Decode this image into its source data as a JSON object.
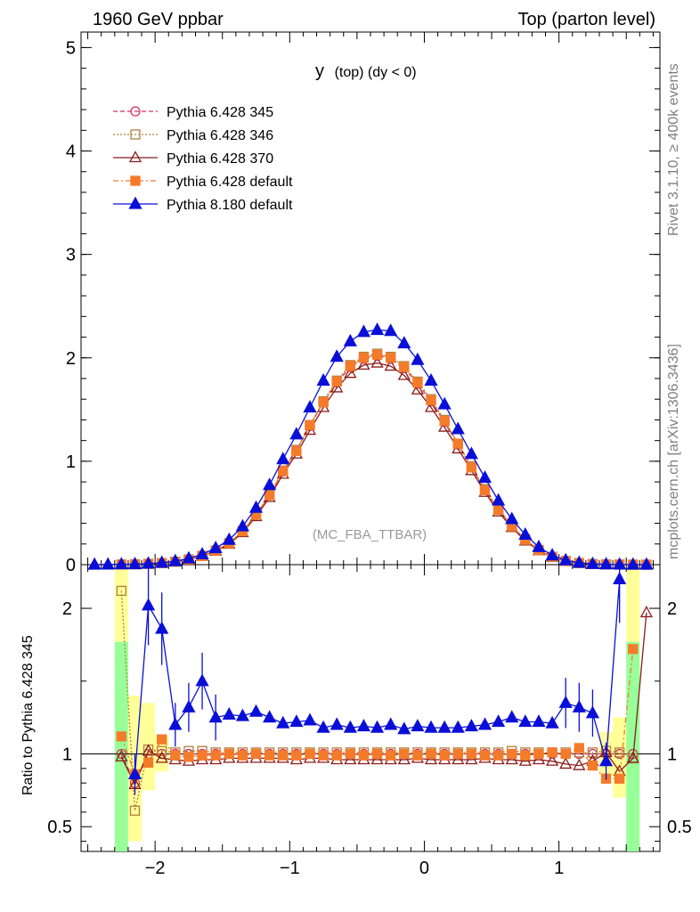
{
  "header": {
    "left": "1960 GeV ppbar",
    "right": "Top (parton level)"
  },
  "title": "y (top) (dy < 0)",
  "title_main": "y",
  "title_rest": "(top) (dy < 0)",
  "watermark": "(MC_FBA_TTBAR)",
  "side_text_top": "Rivet 3.1.10, ≥ 400k events",
  "side_text_bottom": "mcplots.cern.ch [arXiv:1306.3436]",
  "ratio_ylabel": "Ratio to Pythia 6.428 345",
  "chart_data": {
    "type": "line",
    "x": [
      -2.45,
      -2.35,
      -2.25,
      -2.15,
      -2.05,
      -1.95,
      -1.85,
      -1.75,
      -1.65,
      -1.55,
      -1.45,
      -1.35,
      -1.25,
      -1.15,
      -1.05,
      -0.95,
      -0.85,
      -0.75,
      -0.65,
      -0.55,
      -0.45,
      -0.35,
      -0.25,
      -0.15,
      -0.05,
      0.05,
      0.15,
      0.25,
      0.35,
      0.45,
      0.55,
      0.65,
      0.75,
      0.85,
      0.95,
      1.05,
      1.15,
      1.25,
      1.35,
      1.45,
      1.55,
      1.65
    ],
    "xlim": [
      -2.55,
      1.75
    ],
    "main_ylim": [
      0,
      5.15
    ],
    "main_yticks": [
      0,
      1,
      2,
      3,
      4,
      5
    ],
    "ratio_ylim": [
      0.33,
      2.3
    ],
    "ratio_yticks": [
      0.5,
      1,
      2
    ],
    "xticks": [
      -2,
      -1,
      0,
      1
    ],
    "series": [
      {
        "name": "Pythia 6.428 345",
        "color": "#d6305a",
        "marker": "circle-open",
        "dash": "5,3",
        "values": [
          0.0,
          0.001,
          0.002,
          0.004,
          0.008,
          0.015,
          0.028,
          0.05,
          0.085,
          0.135,
          0.205,
          0.32,
          0.48,
          0.67,
          0.9,
          1.1,
          1.34,
          1.57,
          1.76,
          1.91,
          1.99,
          2.02,
          1.99,
          1.9,
          1.75,
          1.58,
          1.38,
          1.16,
          0.94,
          0.72,
          0.53,
          0.37,
          0.24,
          0.14,
          0.075,
          0.035,
          0.015,
          0.006,
          0.002,
          0.001,
          0.0,
          0.0
        ],
        "ratio": [
          null,
          null,
          1.0,
          0.8,
          1.0,
          1.0,
          1.0,
          1.0,
          1.0,
          1.0,
          1.0,
          1.0,
          1.0,
          1.0,
          1.0,
          1.0,
          1.0,
          1.0,
          1.0,
          1.0,
          1.0,
          1.0,
          1.0,
          1.0,
          1.0,
          1.0,
          1.0,
          1.0,
          1.0,
          1.0,
          1.0,
          1.0,
          1.0,
          1.0,
          1.0,
          1.0,
          1.0,
          1.0,
          1.0,
          1.0,
          1.0,
          null
        ]
      },
      {
        "name": "Pythia 6.428 346",
        "color": "#b08040",
        "marker": "square-open",
        "dash": "2,2",
        "values": [
          0.0,
          0.001,
          0.002,
          0.004,
          0.008,
          0.015,
          0.029,
          0.051,
          0.086,
          0.137,
          0.208,
          0.325,
          0.486,
          0.68,
          0.91,
          1.11,
          1.35,
          1.58,
          1.78,
          1.93,
          2.01,
          2.04,
          2.01,
          1.92,
          1.77,
          1.6,
          1.4,
          1.17,
          0.95,
          0.73,
          0.54,
          0.38,
          0.245,
          0.142,
          0.076,
          0.036,
          0.016,
          0.006,
          0.002,
          0.001,
          0.0,
          0.0
        ],
        "ratio": [
          null,
          null,
          2.12,
          0.61,
          1.03,
          1.02,
          1.01,
          1.02,
          1.02,
          1.01,
          1.01,
          1.01,
          1.01,
          1.01,
          1.01,
          1.01,
          1.01,
          1.01,
          1.01,
          1.01,
          1.01,
          1.01,
          1.01,
          1.01,
          1.01,
          1.01,
          1.01,
          1.01,
          1.01,
          1.01,
          1.01,
          1.02,
          1.01,
          1.01,
          1.01,
          1.01,
          1.01,
          1.01,
          1.02,
          1.01,
          0.97,
          null
        ]
      },
      {
        "name": "Pythia 6.428 370",
        "color": "#8b1a1a",
        "marker": "triangle-open",
        "dash": "",
        "values": [
          0.0,
          0.001,
          0.002,
          0.004,
          0.008,
          0.014,
          0.027,
          0.048,
          0.082,
          0.13,
          0.198,
          0.31,
          0.465,
          0.65,
          0.875,
          1.07,
          1.3,
          1.52,
          1.71,
          1.85,
          1.93,
          1.95,
          1.92,
          1.83,
          1.69,
          1.52,
          1.33,
          1.12,
          0.91,
          0.7,
          0.51,
          0.36,
          0.23,
          0.135,
          0.072,
          0.034,
          0.014,
          0.006,
          0.002,
          0.001,
          0.0,
          0.0
        ],
        "ratio": [
          null,
          null,
          0.98,
          0.79,
          1.02,
          0.97,
          0.96,
          0.95,
          0.96,
          0.96,
          0.97,
          0.97,
          0.97,
          0.97,
          0.97,
          0.96,
          0.97,
          0.97,
          0.96,
          0.96,
          0.96,
          0.96,
          0.96,
          0.96,
          0.97,
          0.96,
          0.96,
          0.96,
          0.96,
          0.97,
          0.96,
          0.96,
          0.95,
          0.96,
          0.95,
          0.93,
          0.92,
          0.95,
          1.01,
          0.88,
          0.97,
          1.97
        ]
      },
      {
        "name": "Pythia 6.428 default",
        "color": "#f47b2a",
        "marker": "square-filled",
        "dash": "6,3,2,3",
        "values": [
          0.0,
          0.001,
          0.002,
          0.004,
          0.008,
          0.015,
          0.028,
          0.05,
          0.085,
          0.136,
          0.206,
          0.322,
          0.482,
          0.672,
          0.905,
          1.1,
          1.35,
          1.57,
          1.77,
          1.92,
          2.0,
          2.03,
          2.0,
          1.91,
          1.76,
          1.59,
          1.39,
          1.17,
          0.94,
          0.72,
          0.53,
          0.37,
          0.24,
          0.14,
          0.075,
          0.035,
          0.015,
          0.006,
          0.002,
          0.001,
          0.0,
          0.0
        ],
        "ratio": [
          null,
          null,
          1.12,
          0.86,
          0.94,
          1.1,
          0.99,
          0.98,
          0.99,
          0.99,
          1.0,
          0.99,
          1.0,
          0.99,
          0.99,
          0.99,
          1.0,
          0.99,
          0.99,
          1.0,
          0.99,
          1.0,
          0.99,
          1.0,
          0.99,
          1.0,
          0.99,
          1.0,
          1.0,
          0.99,
          0.99,
          1.0,
          0.99,
          1.0,
          1.01,
          1.0,
          1.04,
          0.92,
          0.83,
          0.83,
          1.72,
          null
        ]
      },
      {
        "name": "Pythia 8.180 default",
        "color": "#0a0fd8",
        "marker": "triangle-filled",
        "dash": "",
        "values": [
          0.0,
          0.001,
          0.003,
          0.005,
          0.01,
          0.018,
          0.034,
          0.06,
          0.1,
          0.16,
          0.24,
          0.37,
          0.55,
          0.77,
          1.02,
          1.26,
          1.52,
          1.78,
          2.01,
          2.16,
          2.25,
          2.27,
          2.26,
          2.14,
          1.98,
          1.78,
          1.55,
          1.31,
          1.07,
          0.84,
          0.62,
          0.44,
          0.29,
          0.17,
          0.09,
          0.042,
          0.018,
          0.007,
          0.003,
          0.001,
          0.0,
          0.0
        ],
        "ratio": [
          null,
          null,
          null,
          0.86,
          2.02,
          1.86,
          1.2,
          1.32,
          1.5,
          1.25,
          1.27,
          1.26,
          1.29,
          1.25,
          1.21,
          1.22,
          1.23,
          1.18,
          1.2,
          1.18,
          1.19,
          1.18,
          1.2,
          1.17,
          1.19,
          1.18,
          1.18,
          1.18,
          1.19,
          1.2,
          1.22,
          1.25,
          1.22,
          1.22,
          1.21,
          1.35,
          1.32,
          1.28,
          0.95,
          2.2,
          null,
          null
        ]
      }
    ],
    "legend_position": "top-left",
    "ratio_reference": 1
  }
}
